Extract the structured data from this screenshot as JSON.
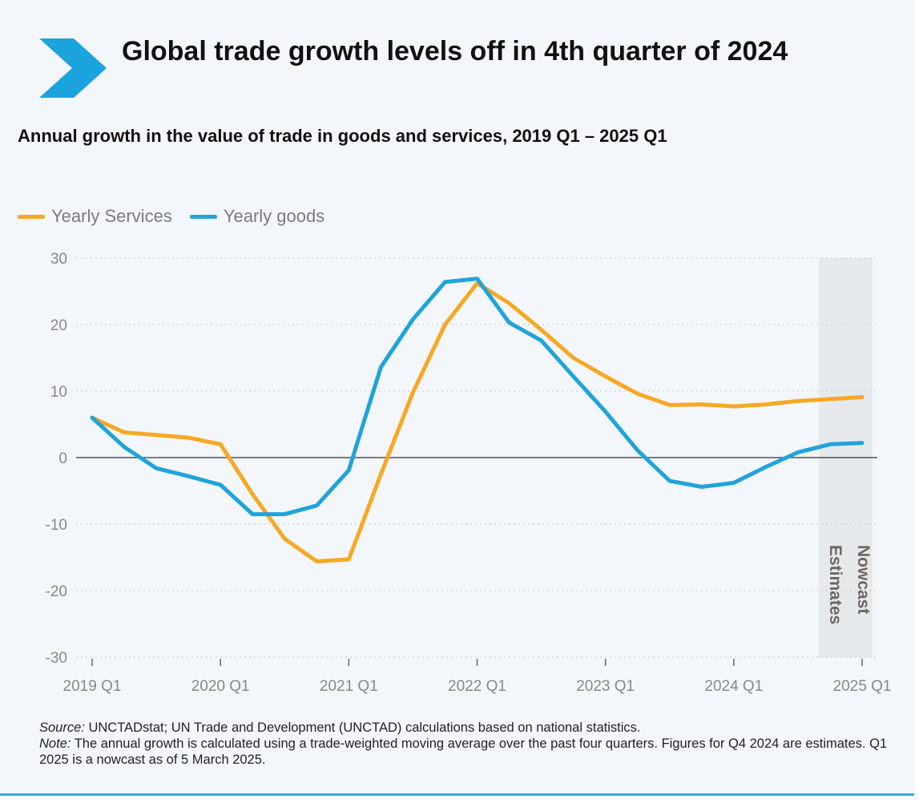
{
  "header": {
    "title": "Global trade growth levels off in 4th quarter of 2024",
    "subtitle": "Annual growth in the value of trade in goods and services, 2019 Q1 – 2025 Q1"
  },
  "colors": {
    "services": "#f7a823",
    "goods": "#1fa4d9",
    "accent": "#1aa3dd",
    "shade": "#e6e9ec"
  },
  "chart_data": {
    "type": "line",
    "x": [
      "2019 Q1",
      "2019 Q2",
      "2019 Q3",
      "2019 Q4",
      "2020 Q1",
      "2020 Q2",
      "2020 Q3",
      "2020 Q4",
      "2021 Q1",
      "2021 Q2",
      "2021 Q3",
      "2021 Q4",
      "2022 Q1",
      "2022 Q2",
      "2022 Q3",
      "2022 Q4",
      "2023 Q1",
      "2023 Q2",
      "2023 Q3",
      "2023 Q4",
      "2024 Q1",
      "2024 Q2",
      "2024 Q3",
      "2024 Q4",
      "2025 Q1"
    ],
    "x_tick_labels": [
      "2019 Q1",
      "2020 Q1",
      "2021 Q1",
      "2022 Q1",
      "2023 Q1",
      "2024 Q1",
      "2025 Q1"
    ],
    "series": [
      {
        "name": "Yearly Services",
        "color": "#f7a823",
        "values": [
          6,
          3.8,
          3.4,
          3,
          2,
          -5.5,
          -12.2,
          -15.6,
          -15.3,
          -2.5,
          9.8,
          20,
          26.2,
          23.2,
          19.2,
          15,
          12.2,
          9.6,
          7.9,
          8,
          7.7,
          8,
          8.5,
          8.8,
          9.1
        ]
      },
      {
        "name": "Yearly goods",
        "color": "#1fa4d9",
        "values": [
          6,
          1.6,
          -1.6,
          -2.8,
          -4.1,
          -8.5,
          -8.5,
          -7.2,
          -1.9,
          13.6,
          20.8,
          26.4,
          26.9,
          20.3,
          17.6,
          12.2,
          6.9,
          1.1,
          -3.5,
          -4.4,
          -3.8,
          -1.4,
          0.8,
          2,
          2.2
        ]
      }
    ],
    "ylim": [
      -30,
      30
    ],
    "yticks": [
      -30,
      -20,
      -10,
      0,
      10,
      20,
      30
    ],
    "grid": true,
    "legend": "top-left",
    "shaded_region": {
      "from": "2024 Q4",
      "to": "2025 Q1",
      "labels": [
        "Estimates",
        "Nowcast"
      ]
    }
  },
  "footnote": {
    "source_label": "Source:",
    "source_text": " UNCTADstat; UN Trade and Development (UNCTAD) calculations based on national statistics.",
    "note_label": "Note:",
    "note_text": " The annual growth is calculated using a trade-weighted moving average over the past four quarters. Figures for Q4 2024 are estimates. Q1 2025 is a nowcast as of 5 March 2025."
  }
}
